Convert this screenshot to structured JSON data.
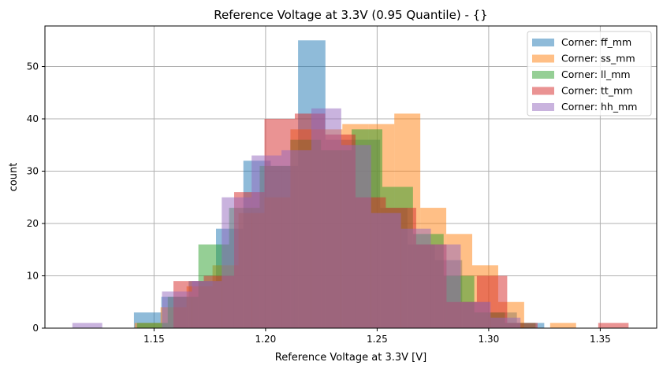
{
  "chart_data": {
    "type": "histogram",
    "title": "Reference Voltage at 3.3V (0.95 Quantile) - {}",
    "xlabel": "Reference Voltage at 3.3V [V]",
    "ylabel": "count",
    "xlim": [
      1.1011,
      1.3753
    ],
    "ylim": [
      0,
      57.75
    ],
    "xticks": [
      "1.15",
      "1.20",
      "1.25",
      "1.30",
      "1.35"
    ],
    "xtick_values": [
      1.15,
      1.2,
      1.25,
      1.3,
      1.35
    ],
    "yticks": [
      "0",
      "10",
      "20",
      "30",
      "40",
      "50"
    ],
    "ytick_values": [
      0,
      10,
      20,
      30,
      40,
      50
    ],
    "grid": true,
    "legend_position": "top-right",
    "series": [
      {
        "name": "Corner: ff_mm",
        "color": "#1f77b4",
        "bin_start": 1.141,
        "bin_width": 0.01226,
        "counts": [
          3,
          6,
          9,
          19,
          32,
          31,
          55,
          36,
          36,
          23,
          16,
          13,
          5,
          3,
          1
        ]
      },
      {
        "name": "Corner: ss_mm",
        "color": "#ff7f0e",
        "bin_start": 1.1413,
        "bin_width": 0.01164,
        "counts": [
          1,
          4,
          8,
          12,
          22,
          25,
          38,
          38,
          39,
          39,
          41,
          23,
          18,
          12,
          5,
          0,
          1
        ]
      },
      {
        "name": "Corner: ll_mm",
        "color": "#2ca02c",
        "bin_start": 1.1424,
        "bin_width": 0.01374,
        "counts": [
          1,
          6,
          16,
          23,
          31,
          36,
          34,
          38,
          27,
          18,
          10,
          3,
          1
        ]
      },
      {
        "name": "Corner: tt_mm",
        "color": "#d62728",
        "bin_start": 1.1587,
        "bin_width": 0.0136,
        "counts": [
          9,
          10,
          26,
          40,
          41,
          37,
          25,
          23,
          16,
          5,
          10,
          1,
          0,
          0,
          1
        ]
      },
      {
        "name": "Corner: hh_mm",
        "color": "#9467bd",
        "bin_start": 1.1134,
        "bin_width": 0.01339,
        "counts": [
          1,
          0,
          0,
          7,
          9,
          25,
          33,
          34,
          42,
          35,
          22,
          19,
          16,
          5,
          2
        ]
      }
    ]
  }
}
